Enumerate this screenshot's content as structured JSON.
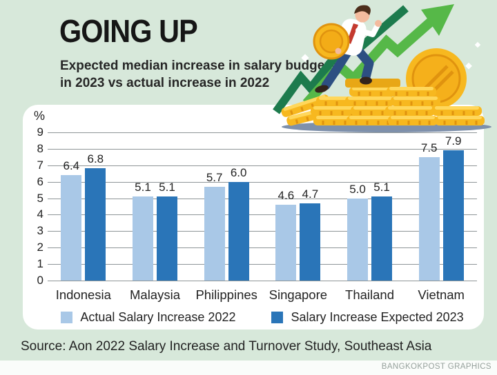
{
  "page": {
    "background_color": "#d7e8da",
    "source_text": "Source: Aon 2022 Salary Increase and Turnover Study, Southeast Asia",
    "credit_text": "BANGKOKPOST GRAPHICS"
  },
  "header": {
    "title": "GOING UP",
    "subtitle_line1": "Expected median increase in salary budgets",
    "subtitle_line2": "in 2023 vs actual increase in 2022"
  },
  "chart_data": {
    "type": "bar",
    "title": "GOING UP",
    "unit_label": "%",
    "categories": [
      "Indonesia",
      "Malaysia",
      "Philippines",
      "Singapore",
      "Thailand",
      "Vietnam"
    ],
    "series": [
      {
        "name": "Actual Salary Increase 2022",
        "color": "#a9c8e7",
        "values": [
          6.4,
          5.1,
          5.7,
          4.6,
          5.0,
          7.5
        ]
      },
      {
        "name": "Salary Increase Expected 2023",
        "color": "#2a75b8",
        "values": [
          6.8,
          5.1,
          6.0,
          4.7,
          5.1,
          7.9
        ]
      }
    ],
    "ylim": [
      0,
      9
    ],
    "ytick_step": 1,
    "grid": true,
    "legend_position": "bottom",
    "value_labels": true
  },
  "illustration": {
    "arrow_green": "#56b848",
    "trend_dark_green": "#1d7b4d",
    "coin_gold": "#f7b81f",
    "coin_gold_light": "#ffd75b",
    "coin_gold_dark": "#e0930f"
  }
}
